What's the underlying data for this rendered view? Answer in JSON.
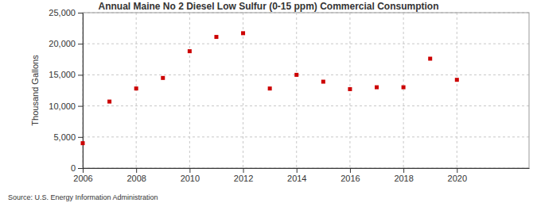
{
  "chart_data": {
    "type": "scatter",
    "title": "Annual Maine No 2 Diesel Low Sulfur (0-15 ppm) Commercial Consumption",
    "y_label": "Thousand Gallons",
    "source": "Source: U.S. Energy Information Administration",
    "x": [
      2006,
      2007,
      2008,
      2009,
      2010,
      2011,
      2012,
      2013,
      2014,
      2015,
      2016,
      2017,
      2018,
      2019,
      2020
    ],
    "values": [
      4000,
      10700,
      12800,
      14500,
      18800,
      21100,
      21700,
      12800,
      15000,
      13900,
      12700,
      13000,
      13000,
      17600,
      14200
    ],
    "color": "#cc0000",
    "marker": "square",
    "xlim": [
      2006,
      2022.7
    ],
    "xticks": [
      2006,
      2008,
      2010,
      2012,
      2014,
      2016,
      2018,
      2020
    ],
    "ylim": [
      0,
      25000
    ],
    "yticks": [
      0,
      {
        "value": 5000,
        "label": "5,000"
      },
      {
        "value": 10000,
        "label": "10,000"
      },
      {
        "value": 15000,
        "label": "15,000"
      },
      {
        "value": 20000,
        "label": "20,000"
      },
      {
        "value": 25000,
        "label": "25,000"
      }
    ],
    "grid": true
  }
}
